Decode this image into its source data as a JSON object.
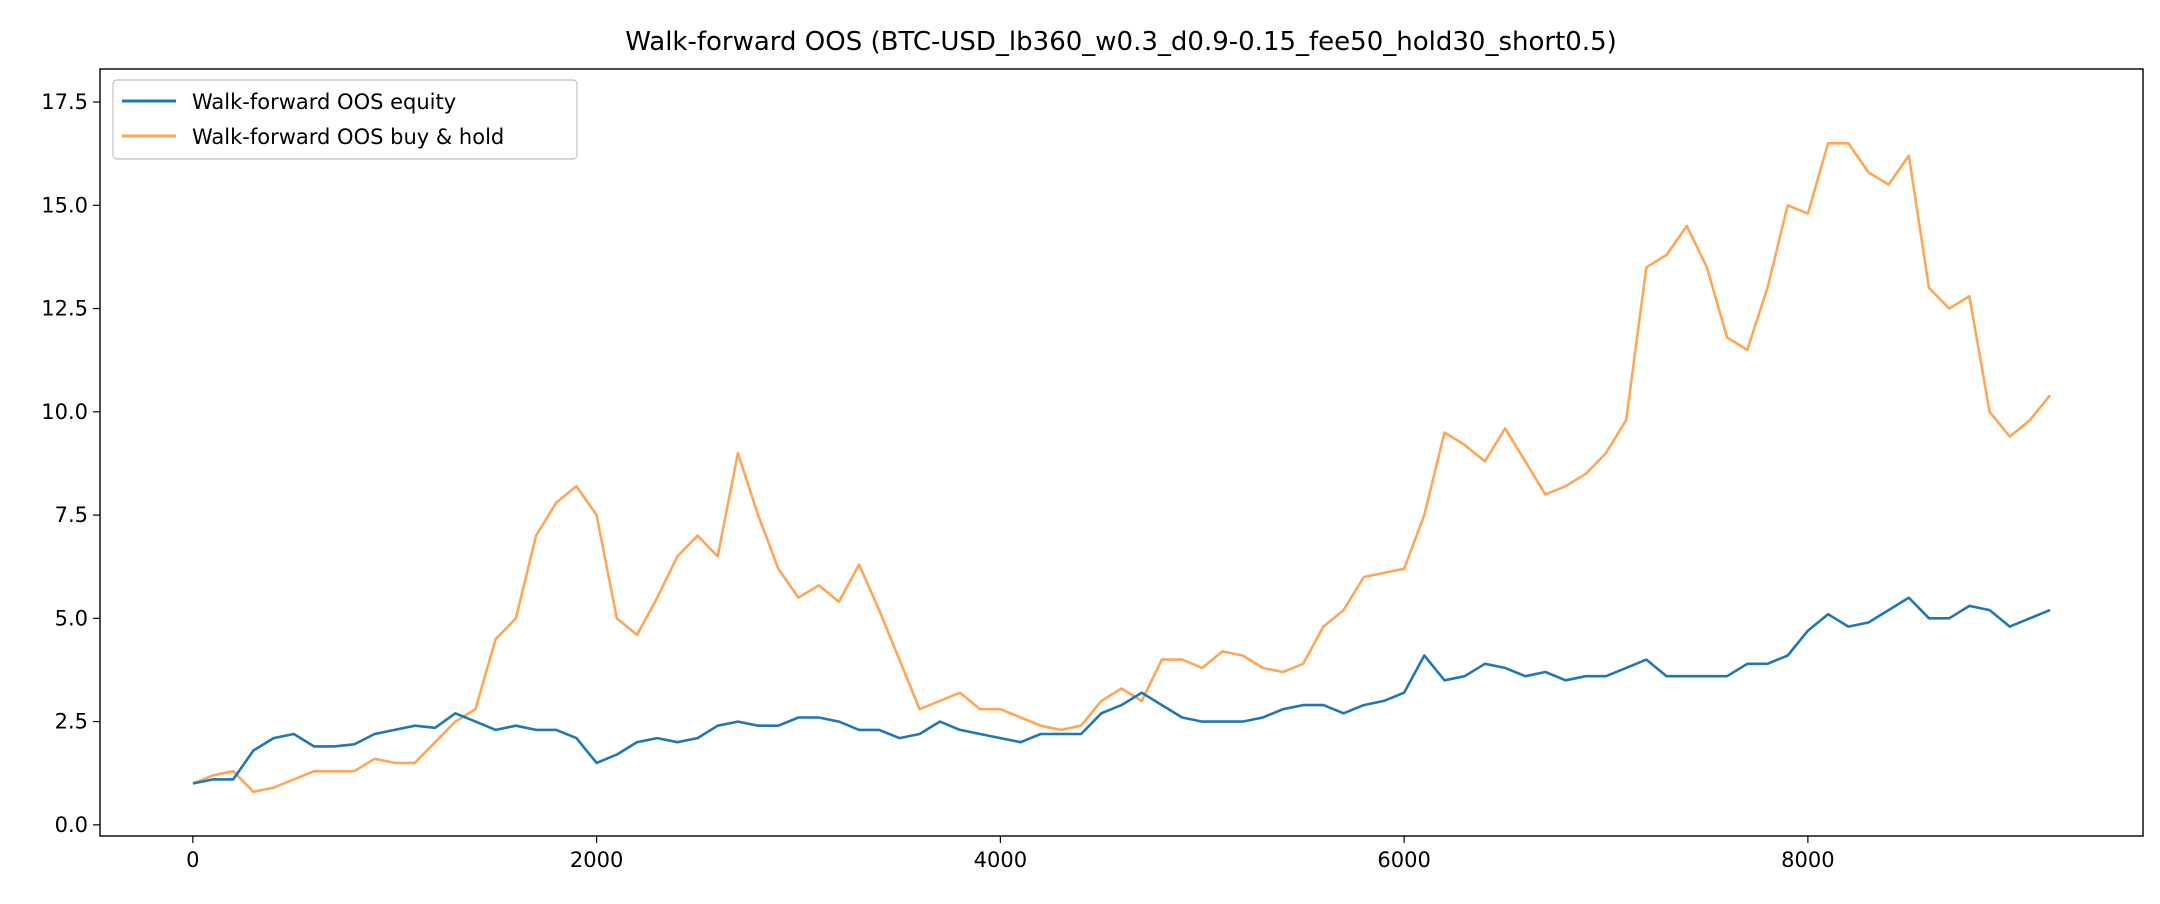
{
  "chart_data": {
    "type": "line",
    "title": "Walk-forward OOS (BTC-USD_lb360_w0.3_d0.9-0.15_fee50_hold30_short0.5)",
    "xlabel": "",
    "ylabel": "",
    "xlim": [
      -460,
      9660
    ],
    "ylim": [
      -0.27,
      18.3
    ],
    "xticks": [
      0,
      2000,
      4000,
      6000,
      8000
    ],
    "yticks": [
      "0.0",
      "2.5",
      "5.0",
      "7.5",
      "10.0",
      "12.5",
      "15.0",
      "17.5"
    ],
    "grid": false,
    "legend_position": "upper-left",
    "x": [
      0,
      100,
      200,
      300,
      400,
      500,
      600,
      700,
      800,
      900,
      1000,
      1100,
      1200,
      1300,
      1400,
      1500,
      1600,
      1700,
      1800,
      1900,
      2000,
      2100,
      2200,
      2300,
      2400,
      2500,
      2600,
      2700,
      2800,
      2900,
      3000,
      3100,
      3200,
      3300,
      3400,
      3500,
      3600,
      3700,
      3800,
      3900,
      4000,
      4100,
      4200,
      4300,
      4400,
      4500,
      4600,
      4700,
      4800,
      4900,
      5000,
      5100,
      5200,
      5300,
      5400,
      5500,
      5600,
      5700,
      5800,
      5900,
      6000,
      6100,
      6200,
      6300,
      6400,
      6500,
      6600,
      6700,
      6800,
      6900,
      7000,
      7100,
      7200,
      7300,
      7400,
      7500,
      7600,
      7700,
      7800,
      7900,
      8000,
      8100,
      8200,
      8300,
      8400,
      8500,
      8600,
      8700,
      8800,
      8900,
      9000,
      9100,
      9200
    ],
    "series": [
      {
        "name": "Walk-forward OOS equity",
        "color": "#1f77b4",
        "values": [
          1.0,
          1.1,
          1.1,
          1.8,
          2.1,
          2.2,
          1.9,
          1.9,
          1.95,
          2.2,
          2.3,
          2.4,
          2.35,
          2.7,
          2.5,
          2.3,
          2.4,
          2.3,
          2.3,
          2.1,
          1.5,
          1.7,
          2.0,
          2.1,
          2.0,
          2.1,
          2.4,
          2.5,
          2.4,
          2.4,
          2.6,
          2.6,
          2.5,
          2.3,
          2.3,
          2.1,
          2.2,
          2.5,
          2.3,
          2.2,
          2.1,
          2.0,
          2.2,
          2.2,
          2.2,
          2.7,
          2.9,
          3.2,
          2.9,
          2.6,
          2.5,
          2.5,
          2.5,
          2.6,
          2.8,
          2.9,
          2.9,
          2.7,
          2.9,
          3.0,
          3.2,
          4.1,
          3.5,
          3.6,
          3.9,
          3.8,
          3.6,
          3.7,
          3.5,
          3.6,
          3.6,
          3.8,
          4.0,
          3.6,
          3.6,
          3.6,
          3.6,
          3.9,
          3.9,
          4.1,
          4.7,
          5.1,
          4.8,
          4.9,
          5.2,
          5.5,
          5.0,
          5.0,
          5.3,
          5.2,
          4.8,
          5.0,
          5.2
        ]
      },
      {
        "name": "Walk-forward OOS buy & hold",
        "color": "#ff7f0e",
        "values": [
          1.0,
          1.2,
          1.3,
          0.8,
          0.9,
          1.1,
          1.3,
          1.3,
          1.3,
          1.6,
          1.5,
          1.5,
          2.0,
          2.5,
          2.8,
          4.5,
          5.0,
          7.0,
          7.8,
          8.2,
          7.5,
          5.0,
          4.6,
          5.5,
          6.5,
          7.0,
          6.5,
          9.0,
          7.5,
          6.2,
          5.5,
          5.8,
          5.4,
          6.3,
          5.2,
          4.0,
          2.8,
          3.0,
          3.2,
          2.8,
          2.8,
          2.6,
          2.4,
          2.3,
          2.4,
          3.0,
          3.3,
          3.0,
          4.0,
          4.0,
          3.8,
          4.2,
          4.1,
          3.8,
          3.7,
          3.9,
          4.8,
          5.2,
          6.0,
          6.1,
          6.2,
          7.5,
          9.5,
          9.2,
          8.8,
          9.6,
          8.8,
          8.0,
          8.2,
          8.5,
          9.0,
          9.8,
          13.5,
          13.8,
          14.5,
          13.5,
          11.8,
          11.5,
          13.0,
          15.0,
          14.8,
          16.5,
          16.5,
          15.8,
          15.5,
          16.2,
          13.0,
          12.5,
          12.8,
          10.0,
          9.4,
          9.8,
          10.4
        ]
      }
    ]
  }
}
